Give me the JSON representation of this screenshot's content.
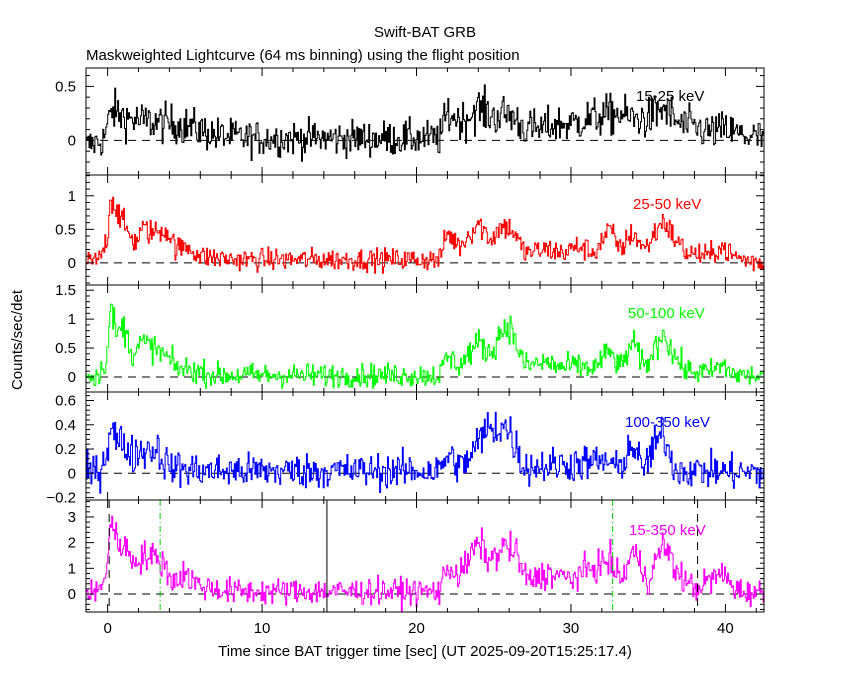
{
  "chart_data": {
    "type": "line",
    "title": "Swift-BAT GRB",
    "subtitle": "Maskweighted Lightcurve (64 ms binning) using the flight position",
    "xlabel": "Time since BAT trigger time [sec] (UT 2025-09-20T15:25:17.4)",
    "ylabel": "Counts/sec/det",
    "xlim": [
      -1.4,
      42.5
    ],
    "x_ticks": [
      "0",
      "10",
      "20",
      "30",
      "40"
    ],
    "x_tick_values": [
      0,
      10,
      20,
      30,
      40
    ],
    "bin_sec": 0.064,
    "markers": [
      {
        "t": 0.1,
        "style": "dashed",
        "color": "#000000"
      },
      {
        "t": 3.4,
        "style": "dashdot",
        "color": "#00cc00"
      },
      {
        "t": 14.2,
        "style": "solid",
        "color": "#000000"
      },
      {
        "t": 32.7,
        "style": "dashdot",
        "color": "#00cc00"
      },
      {
        "t": 38.2,
        "style": "dashed",
        "color": "#000000"
      }
    ],
    "series": [
      {
        "name": "15-25 keV",
        "color": "#000000",
        "ylim": [
          -0.32,
          0.67
        ],
        "noise": 0.08,
        "y_ticks": [
          "0",
          "0.5"
        ],
        "y_tick_values": [
          0,
          0.5
        ],
        "profile": [
          [
            -1.4,
            -0.05
          ],
          [
            -0.3,
            0.0
          ],
          [
            0.3,
            0.28
          ],
          [
            1,
            0.22
          ],
          [
            2,
            0.18
          ],
          [
            3,
            0.17
          ],
          [
            4.5,
            0.15
          ],
          [
            5.5,
            0.12
          ],
          [
            7,
            0.05
          ],
          [
            9,
            0.02
          ],
          [
            21.5,
            0.02
          ],
          [
            22,
            0.25
          ],
          [
            23,
            0.18
          ],
          [
            24,
            0.3
          ],
          [
            25,
            0.22
          ],
          [
            26,
            0.25
          ],
          [
            27,
            0.12
          ],
          [
            28,
            0.1
          ],
          [
            29,
            0.15
          ],
          [
            30,
            0.15
          ],
          [
            31,
            0.2
          ],
          [
            32,
            0.22
          ],
          [
            33,
            0.25
          ],
          [
            34,
            0.2
          ],
          [
            35,
            0.2
          ],
          [
            36,
            0.3
          ],
          [
            37,
            0.15
          ],
          [
            38,
            0.12
          ],
          [
            39,
            0.08
          ],
          [
            40,
            0.1
          ],
          [
            41,
            0.05
          ],
          [
            42.5,
            0.02
          ]
        ]
      },
      {
        "name": "25-50 keV",
        "color": "#ff0000",
        "ylim": [
          -0.33,
          1.31
        ],
        "noise": 0.08,
        "y_ticks": [
          "0",
          "0.5",
          "1"
        ],
        "y_tick_values": [
          0,
          0.5,
          1
        ],
        "profile": [
          [
            -1.4,
            0
          ],
          [
            -0.5,
            0.05
          ],
          [
            0,
            0.4
          ],
          [
            0.2,
            1.0
          ],
          [
            0.6,
            0.8
          ],
          [
            1.2,
            0.5
          ],
          [
            1.8,
            0.3
          ],
          [
            2.2,
            0.5
          ],
          [
            3,
            0.45
          ],
          [
            3.8,
            0.5
          ],
          [
            4.5,
            0.2
          ],
          [
            5.2,
            0.25
          ],
          [
            6,
            0.1
          ],
          [
            8,
            0.05
          ],
          [
            21.5,
            0.05
          ],
          [
            22,
            0.45
          ],
          [
            22.8,
            0.25
          ],
          [
            24,
            0.6
          ],
          [
            24.8,
            0.35
          ],
          [
            25.5,
            0.55
          ],
          [
            26.2,
            0.5
          ],
          [
            27,
            0.15
          ],
          [
            28.5,
            0.2
          ],
          [
            29.5,
            0.15
          ],
          [
            30.5,
            0.25
          ],
          [
            31.5,
            0.15
          ],
          [
            32.5,
            0.5
          ],
          [
            33.2,
            0.2
          ],
          [
            34,
            0.45
          ],
          [
            34.8,
            0.2
          ],
          [
            36,
            0.65
          ],
          [
            36.6,
            0.4
          ],
          [
            37.5,
            0.15
          ],
          [
            39,
            0.1
          ],
          [
            39.7,
            0.25
          ],
          [
            40.5,
            0.1
          ],
          [
            41.5,
            0.03
          ],
          [
            42.5,
            0
          ]
        ]
      },
      {
        "name": "50-100 keV",
        "color": "#00ff00",
        "ylim": [
          -0.26,
          1.59
        ],
        "noise": 0.1,
        "y_ticks": [
          "0",
          "0.5",
          "1",
          "1.5"
        ],
        "y_tick_values": [
          0,
          0.5,
          1,
          1.5
        ],
        "profile": [
          [
            -1.4,
            0
          ],
          [
            -0.5,
            0.05
          ],
          [
            0,
            0.4
          ],
          [
            0.2,
            1.25
          ],
          [
            0.6,
            0.7
          ],
          [
            1,
            0.9
          ],
          [
            1.6,
            0.4
          ],
          [
            2.2,
            0.6
          ],
          [
            3,
            0.5
          ],
          [
            3.8,
            0.35
          ],
          [
            4.5,
            0.15
          ],
          [
            5.5,
            0.12
          ],
          [
            7,
            0.03
          ],
          [
            21.5,
            0.03
          ],
          [
            22,
            0.35
          ],
          [
            22.8,
            0.2
          ],
          [
            24,
            0.6
          ],
          [
            24.8,
            0.4
          ],
          [
            25.5,
            0.8
          ],
          [
            26,
            0.9
          ],
          [
            27,
            0.2
          ],
          [
            28.5,
            0.25
          ],
          [
            29.5,
            0.15
          ],
          [
            30,
            0.2
          ],
          [
            31.5,
            0.15
          ],
          [
            32.5,
            0.45
          ],
          [
            33.2,
            0.15
          ],
          [
            34,
            0.6
          ],
          [
            34.8,
            0.15
          ],
          [
            36,
            0.8
          ],
          [
            36.6,
            0.4
          ],
          [
            37.5,
            0.1
          ],
          [
            39,
            0.08
          ],
          [
            39.8,
            0.2
          ],
          [
            40.5,
            0.05
          ],
          [
            42.5,
            0
          ]
        ]
      },
      {
        "name": "100-350 keV",
        "color": "#0000ff",
        "ylim": [
          -0.22,
          0.67
        ],
        "noise": 0.07,
        "y_ticks": [
          "−0.2",
          "0",
          "0.2",
          "0.4",
          "0.6"
        ],
        "y_tick_values": [
          -0.2,
          0,
          0.2,
          0.4,
          0.6
        ],
        "profile": [
          [
            -1.4,
            0
          ],
          [
            -0.5,
            0.02
          ],
          [
            0,
            0.2
          ],
          [
            0.2,
            0.45
          ],
          [
            0.6,
            0.25
          ],
          [
            1,
            0.25
          ],
          [
            1.6,
            0.15
          ],
          [
            2.5,
            0.2
          ],
          [
            3.2,
            0.2
          ],
          [
            4,
            0.05
          ],
          [
            6,
            0.02
          ],
          [
            21.5,
            0.02
          ],
          [
            22,
            0.15
          ],
          [
            23,
            0.05
          ],
          [
            24.5,
            0.35
          ],
          [
            25.5,
            0.4
          ],
          [
            26,
            0.35
          ],
          [
            27,
            0.05
          ],
          [
            32.5,
            0.1
          ],
          [
            33,
            0.02
          ],
          [
            34,
            0.25
          ],
          [
            34.6,
            0.03
          ],
          [
            36,
            0.35
          ],
          [
            36.5,
            0.1
          ],
          [
            37,
            0.03
          ],
          [
            42.5,
            0
          ]
        ]
      },
      {
        "name": "15-350 keV",
        "color": "#ff00ff",
        "ylim": [
          -0.7,
          3.66
        ],
        "noise": 0.25,
        "y_ticks": [
          "0",
          "1",
          "2",
          "3"
        ],
        "y_tick_values": [
          0,
          1,
          2,
          3
        ],
        "profile": [
          [
            -1.4,
            0
          ],
          [
            -0.5,
            0.1
          ],
          [
            0,
            1.2
          ],
          [
            0.2,
            3.0
          ],
          [
            0.6,
            2.0
          ],
          [
            1,
            2.0
          ],
          [
            1.6,
            1.3
          ],
          [
            2.5,
            1.5
          ],
          [
            3.5,
            1.3
          ],
          [
            4.2,
            0.5
          ],
          [
            5,
            0.8
          ],
          [
            6,
            0.3
          ],
          [
            8,
            0.1
          ],
          [
            21.5,
            0.1
          ],
          [
            22,
            1.1
          ],
          [
            22.8,
            0.7
          ],
          [
            24,
            2.0
          ],
          [
            24.8,
            1.3
          ],
          [
            25.8,
            1.9
          ],
          [
            26.4,
            1.6
          ],
          [
            27.2,
            0.5
          ],
          [
            28.5,
            0.8
          ],
          [
            30,
            0.6
          ],
          [
            31,
            0.9
          ],
          [
            32.5,
            1.3
          ],
          [
            33.3,
            0.5
          ],
          [
            34,
            1.7
          ],
          [
            35,
            0.5
          ],
          [
            36,
            2.0
          ],
          [
            36.8,
            0.9
          ],
          [
            38,
            0.2
          ],
          [
            39.8,
            0.8
          ],
          [
            40.5,
            0.3
          ],
          [
            41,
            0.1
          ],
          [
            42.5,
            0.05
          ]
        ]
      }
    ]
  }
}
